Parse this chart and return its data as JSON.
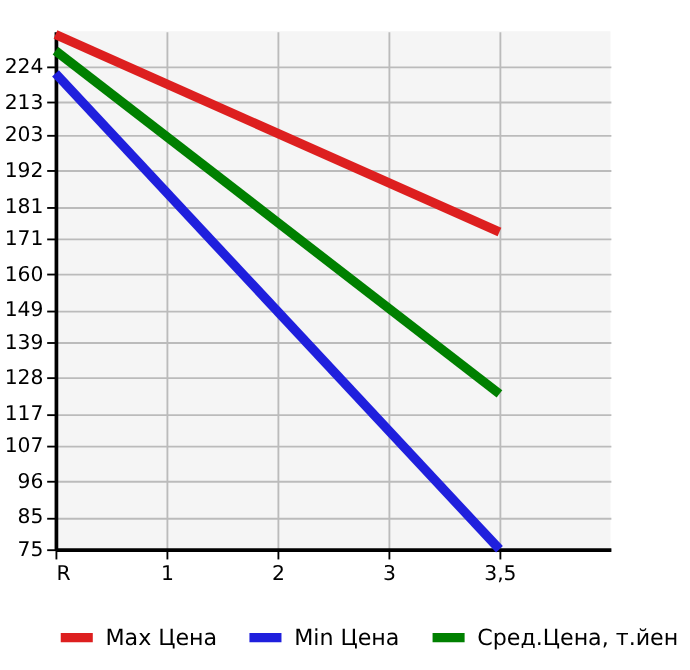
{
  "chart_data": {
    "type": "line",
    "categories": [
      "R",
      "1",
      "2",
      "3",
      "3,5"
    ],
    "series": [
      {
        "name": "Max Цена",
        "color": "#dd1f1f",
        "values": [
          234,
          null,
          null,
          null,
          173
        ]
      },
      {
        "name": "Min Цена",
        "color": "#1f1fdd",
        "values": [
          222,
          null,
          null,
          null,
          75
        ]
      },
      {
        "name": "Сред.Цена, т.йен",
        "color": "#008000",
        "values": [
          229,
          null,
          null,
          null,
          123
        ]
      }
    ],
    "ylim": [
      75,
      235
    ],
    "yticks": [
      75,
      85,
      96,
      107,
      117,
      128,
      139,
      149,
      160,
      171,
      181,
      192,
      203,
      213,
      224
    ],
    "grid": true,
    "legend": "bottom",
    "marker": "none",
    "line_style": "solid"
  }
}
